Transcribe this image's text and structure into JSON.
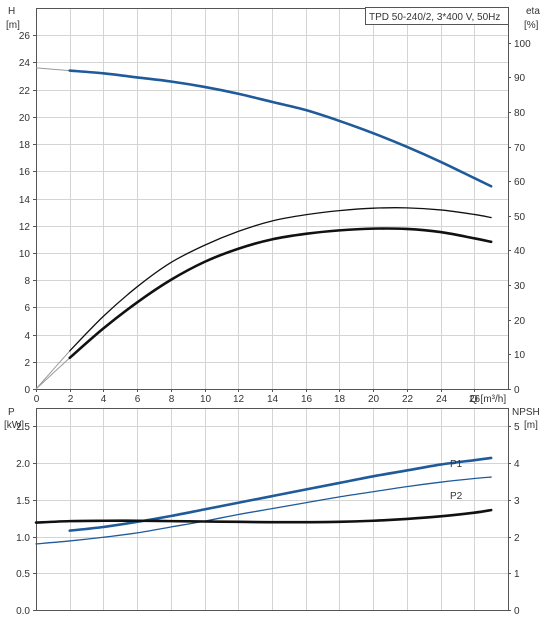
{
  "info_box": "TPD 50-240/2, 3*400 V, 50Hz",
  "top_chart": {
    "left_axis_label": "H",
    "left_axis_unit": "[m]",
    "right_axis_label": "eta",
    "right_axis_unit": "[%]",
    "x_axis_label": "Q [m³/h]"
  },
  "bottom_chart": {
    "left_axis_label": "P",
    "left_axis_unit": "[kW]",
    "right_axis_label": "NPSH",
    "right_axis_unit": "[m]",
    "series_labels": {
      "p1": "P1",
      "p2": "P2"
    }
  },
  "colors": {
    "head": "#1f5a9a",
    "efficiency": "#111111",
    "power": "#1f5a9a",
    "npsh": "#111111",
    "grid": "#d4d4d4"
  },
  "chart_data": [
    {
      "type": "line",
      "title": "",
      "xlabel": "Q [m³/h]",
      "ylabel": "H [m]",
      "y2label": "eta [%]",
      "xlim": [
        0,
        28
      ],
      "ylim": [
        0,
        28
      ],
      "y2lim": [
        0,
        110
      ],
      "xticks": [
        0,
        2,
        4,
        6,
        8,
        10,
        12,
        14,
        16,
        18,
        20,
        22,
        24,
        26
      ],
      "yticks": [
        0,
        2,
        4,
        6,
        8,
        10,
        12,
        14,
        16,
        18,
        20,
        22,
        24,
        26
      ],
      "y2ticks": [
        0,
        10,
        20,
        30,
        40,
        50,
        60,
        70,
        80,
        90,
        100
      ],
      "grid": true,
      "series": [
        {
          "key": "head",
          "axis": "left",
          "x": [
            0,
            2,
            4,
            6,
            8,
            10,
            12,
            14,
            16,
            18,
            20,
            22,
            24,
            26,
            27
          ],
          "values": [
            23.6,
            23.4,
            23.2,
            22.9,
            22.6,
            22.2,
            21.7,
            21.1,
            20.5,
            19.7,
            18.8,
            17.8,
            16.7,
            15.5,
            14.9
          ]
        },
        {
          "key": "efficiency_overall",
          "axis": "right",
          "x": [
            0,
            2,
            4,
            6,
            8,
            10,
            12,
            14,
            16,
            18,
            20,
            22,
            24,
            26,
            27
          ],
          "values": [
            0,
            11,
            21,
            29.5,
            36.5,
            41.5,
            45.5,
            48.5,
            50.3,
            51.5,
            52.2,
            52.3,
            51.7,
            50.4,
            49.5
          ]
        },
        {
          "key": "efficiency_hydraulic",
          "axis": "right",
          "x": [
            0,
            2,
            4,
            6,
            8,
            10,
            12,
            14,
            16,
            18,
            20,
            22,
            24,
            26,
            27
          ],
          "values": [
            0,
            9,
            17.5,
            25,
            31.5,
            36.7,
            40.5,
            43.2,
            44.8,
            45.8,
            46.3,
            46.2,
            45.3,
            43.5,
            42.5
          ]
        }
      ]
    },
    {
      "type": "line",
      "title": "",
      "xlabel": "",
      "ylabel": "P [kW]",
      "y2label": "NPSH [m]",
      "xlim": [
        0,
        28
      ],
      "ylim": [
        0,
        2.75
      ],
      "y2lim": [
        0,
        5.5
      ],
      "yticks": [
        0.0,
        0.5,
        1.0,
        1.5,
        2.0,
        2.5
      ],
      "y2ticks": [
        0,
        1,
        2,
        3,
        4,
        5
      ],
      "grid": true,
      "series": [
        {
          "key": "p1",
          "name": "P1",
          "axis": "left",
          "x": [
            2,
            4,
            6,
            8,
            10,
            12,
            14,
            16,
            18,
            20,
            22,
            24,
            26,
            27
          ],
          "values": [
            1.08,
            1.13,
            1.2,
            1.28,
            1.37,
            1.46,
            1.55,
            1.64,
            1.73,
            1.82,
            1.9,
            1.98,
            2.04,
            2.07
          ]
        },
        {
          "key": "p2",
          "name": "P2",
          "axis": "left",
          "x": [
            0,
            2,
            4,
            6,
            8,
            10,
            12,
            14,
            16,
            18,
            20,
            22,
            24,
            26,
            27
          ],
          "values": [
            0.9,
            0.94,
            0.99,
            1.05,
            1.13,
            1.21,
            1.3,
            1.38,
            1.46,
            1.54,
            1.61,
            1.68,
            1.74,
            1.79,
            1.81
          ]
        },
        {
          "key": "npsh",
          "axis": "right",
          "x": [
            0,
            2,
            4,
            6,
            8,
            10,
            12,
            14,
            16,
            18,
            20,
            22,
            24,
            26,
            27
          ],
          "values": [
            2.38,
            2.42,
            2.43,
            2.43,
            2.42,
            2.41,
            2.4,
            2.39,
            2.39,
            2.4,
            2.43,
            2.48,
            2.55,
            2.65,
            2.72
          ]
        }
      ]
    }
  ]
}
